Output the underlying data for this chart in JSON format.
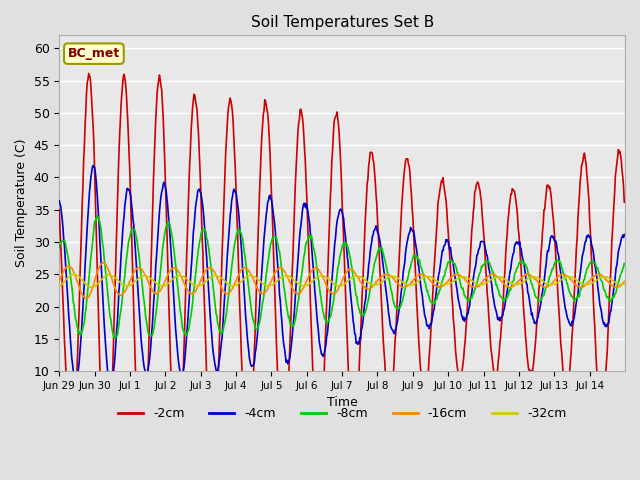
{
  "title": "Soil Temperatures Set B",
  "xlabel": "Time",
  "ylabel": "Soil Temperature (C)",
  "annotation": "BC_met",
  "ylim": [
    10,
    62
  ],
  "yticks": [
    10,
    15,
    20,
    25,
    30,
    35,
    40,
    45,
    50,
    55,
    60
  ],
  "series_colors": [
    "#cc0000",
    "#0000cc",
    "#00cc00",
    "#ff8800",
    "#cccc00"
  ],
  "series_labels": [
    "-2cm",
    "-4cm",
    "-8cm",
    "-16cm",
    "-32cm"
  ],
  "bg_color": "#e0e0e0",
  "plot_bg_color": "#e8e8e8",
  "grid_color": "#ffffff",
  "n_days": 16,
  "samples_per_day": 48,
  "mean_temp": 24.0,
  "peak_hour": 14,
  "tick_labels": [
    "Jun 29",
    "Jun 30",
    "Jul 1",
    "Jul 2",
    "Jul 3",
    "Jul 4",
    "Jul 5",
    "Jul 6",
    "Jul 7",
    "Jul 8",
    "Jul 9",
    "Jul 10",
    "Jul 11",
    "Jul 12",
    "Jul 13",
    "Jul 14"
  ],
  "annotation_box_color": "#ffffcc",
  "annotation_text_color": "#800000",
  "annotation_border_color": "#999900",
  "day_amplitudes_2cm": [
    21,
    34,
    31,
    32,
    28,
    28,
    28,
    26,
    26,
    19,
    19,
    15,
    15,
    14,
    15,
    20
  ],
  "day_amplitudes_4cm": [
    13,
    18,
    14,
    15,
    14,
    14,
    13,
    12,
    11,
    8,
    8,
    6,
    6,
    6,
    7,
    7
  ],
  "day_amplitudes_8cm": [
    6,
    10,
    8,
    9,
    8,
    8,
    7,
    7,
    6,
    5,
    4,
    3,
    3,
    3,
    3,
    3
  ],
  "day_amplitudes_16cm": [
    2,
    3,
    2,
    2,
    2,
    2,
    2,
    2,
    2,
    1,
    1,
    1,
    1,
    1,
    1,
    1
  ],
  "day_amplitudes_32cm": [
    1.0,
    1.0,
    0.8,
    0.8,
    0.8,
    0.8,
    0.8,
    0.8,
    0.8,
    0.7,
    0.7,
    0.6,
    0.6,
    0.6,
    0.6,
    0.6
  ],
  "phase_shifts_hours": [
    0.0,
    3.0,
    6.0,
    10.0,
    14.0
  ]
}
